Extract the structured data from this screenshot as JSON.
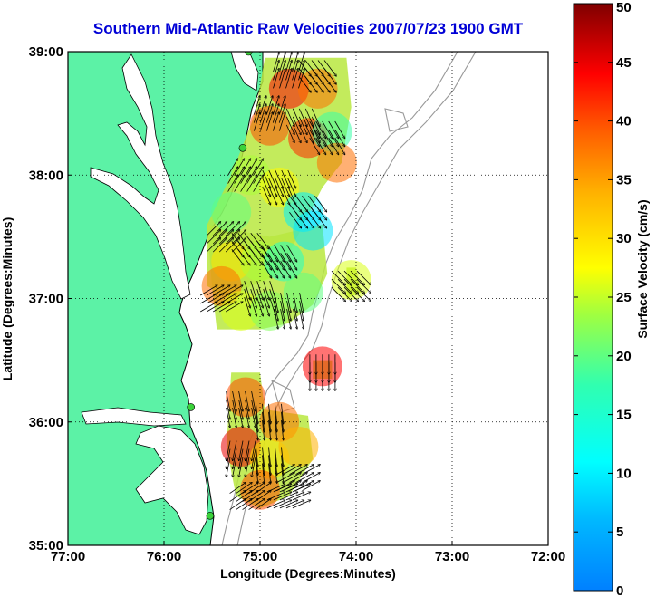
{
  "title": "Southern Mid-Atlantic Raw Velocities 2007/07/23 1900 GMT",
  "xlabel": "Longitude (Degrees:Minutes)",
  "ylabel": "Latitude (Degrees:Minutes)",
  "colorbar_label": "Surface Velocity (cm/s)",
  "x_ticks": [
    {
      "value": -77,
      "label": "77:00"
    },
    {
      "value": -76,
      "label": "76:00"
    },
    {
      "value": -75,
      "label": "75:00"
    },
    {
      "value": -74,
      "label": "74:00"
    },
    {
      "value": -73,
      "label": "73:00"
    },
    {
      "value": -72,
      "label": "72:00"
    }
  ],
  "y_ticks": [
    {
      "value": 35,
      "label": "35:00"
    },
    {
      "value": 36,
      "label": "36:00"
    },
    {
      "value": 37,
      "label": "37:00"
    },
    {
      "value": 38,
      "label": "38:00"
    },
    {
      "value": 39,
      "label": "39:00"
    }
  ],
  "colorbar_ticks": [
    {
      "value": 0,
      "label": "0"
    },
    {
      "value": 5,
      "label": "5"
    },
    {
      "value": 10,
      "label": "10"
    },
    {
      "value": 15,
      "label": "15"
    },
    {
      "value": 20,
      "label": "20"
    },
    {
      "value": 25,
      "label": "25"
    },
    {
      "value": 30,
      "label": "30"
    },
    {
      "value": 35,
      "label": "35"
    },
    {
      "value": 40,
      "label": "40"
    },
    {
      "value": 45,
      "label": "45"
    },
    {
      "value": 50,
      "label": "50"
    }
  ],
  "chart_data": {
    "type": "heatmap",
    "xlim": [
      -77,
      -72
    ],
    "ylim": [
      35,
      39
    ],
    "clim": [
      0,
      50
    ],
    "grid": true,
    "colormap": "jet",
    "colors": {
      "land": "#5cf2a6",
      "ocean": "#ffffff",
      "coastline": "#000000",
      "bathymetry": "#999999",
      "title": "#0000d6",
      "station": "#3ad23a"
    },
    "velocity_regions": [
      {
        "name": "northern-field",
        "polygon": [
          [
            -74.95,
            38.95
          ],
          [
            -74.1,
            38.95
          ],
          [
            -74.05,
            38.55
          ],
          [
            -74.15,
            38.1
          ],
          [
            -74.35,
            37.9
          ],
          [
            -74.55,
            37.6
          ],
          [
            -74.8,
            37.2
          ],
          [
            -75.1,
            37.1
          ],
          [
            -75.3,
            37.0
          ],
          [
            -75.55,
            37.1
          ],
          [
            -75.55,
            37.6
          ],
          [
            -75.3,
            38.0
          ],
          [
            -75.05,
            38.5
          ]
        ]
      },
      {
        "name": "central-field",
        "polygon": [
          [
            -75.55,
            37.6
          ],
          [
            -74.9,
            37.5
          ],
          [
            -74.35,
            37.6
          ],
          [
            -74.3,
            37.2
          ],
          [
            -74.45,
            36.95
          ],
          [
            -74.7,
            36.8
          ],
          [
            -75.0,
            36.75
          ],
          [
            -75.45,
            36.75
          ],
          [
            -75.5,
            37.1
          ]
        ]
      },
      {
        "name": "east-patch",
        "polygon": [
          [
            -74.1,
            37.25
          ],
          [
            -74.0,
            37.25
          ],
          [
            -73.95,
            37.05
          ],
          [
            -74.1,
            37.0
          ]
        ]
      },
      {
        "name": "small-patch",
        "polygon": [
          [
            -74.45,
            36.5
          ],
          [
            -74.25,
            36.5
          ],
          [
            -74.25,
            36.35
          ],
          [
            -74.45,
            36.35
          ]
        ]
      },
      {
        "name": "southern-field",
        "polygon": [
          [
            -75.3,
            36.4
          ],
          [
            -75.0,
            36.4
          ],
          [
            -74.95,
            36.1
          ],
          [
            -74.5,
            36.05
          ],
          [
            -74.45,
            35.7
          ],
          [
            -74.7,
            35.4
          ],
          [
            -75.0,
            35.3
          ],
          [
            -75.25,
            35.4
          ],
          [
            -75.35,
            35.8
          ]
        ]
      }
    ],
    "velocity_samples": [
      {
        "lon": -74.7,
        "lat": 38.7,
        "speed": 44
      },
      {
        "lon": -74.4,
        "lat": 38.7,
        "speed": 38
      },
      {
        "lon": -74.9,
        "lat": 38.4,
        "speed": 40
      },
      {
        "lon": -74.5,
        "lat": 38.3,
        "speed": 42
      },
      {
        "lon": -74.25,
        "lat": 38.35,
        "speed": 18
      },
      {
        "lon": -74.2,
        "lat": 38.1,
        "speed": 38
      },
      {
        "lon": -75.1,
        "lat": 38.0,
        "speed": 24
      },
      {
        "lon": -74.8,
        "lat": 37.9,
        "speed": 28
      },
      {
        "lon": -74.55,
        "lat": 37.7,
        "speed": 10
      },
      {
        "lon": -74.45,
        "lat": 37.55,
        "speed": 9
      },
      {
        "lon": -75.3,
        "lat": 37.7,
        "speed": 20
      },
      {
        "lon": -75.3,
        "lat": 37.3,
        "speed": 30
      },
      {
        "lon": -75.4,
        "lat": 37.1,
        "speed": 38
      },
      {
        "lon": -75.0,
        "lat": 37.3,
        "speed": 24
      },
      {
        "lon": -74.75,
        "lat": 37.3,
        "speed": 16
      },
      {
        "lon": -74.55,
        "lat": 37.05,
        "speed": 20
      },
      {
        "lon": -75.2,
        "lat": 36.9,
        "speed": 26
      },
      {
        "lon": -74.9,
        "lat": 36.9,
        "speed": 22
      },
      {
        "lon": -74.35,
        "lat": 36.45,
        "speed": 44
      },
      {
        "lon": -74.05,
        "lat": 37.15,
        "speed": 26
      },
      {
        "lon": -75.15,
        "lat": 36.2,
        "speed": 40
      },
      {
        "lon": -74.8,
        "lat": 36.0,
        "speed": 38
      },
      {
        "lon": -75.2,
        "lat": 35.8,
        "speed": 45
      },
      {
        "lon": -74.9,
        "lat": 35.7,
        "speed": 30
      },
      {
        "lon": -74.6,
        "lat": 35.8,
        "speed": 34
      },
      {
        "lon": -75.0,
        "lat": 35.45,
        "speed": 40
      }
    ],
    "vectors": [
      {
        "lon": -74.7,
        "lat": 38.85,
        "u": 0.3,
        "v": 1.0
      },
      {
        "lon": -74.4,
        "lat": 38.8,
        "u": 0.6,
        "v": -0.8
      },
      {
        "lon": -74.9,
        "lat": 38.5,
        "u": 0.3,
        "v": 0.95
      },
      {
        "lon": -74.55,
        "lat": 38.4,
        "u": 0.4,
        "v": -0.9
      },
      {
        "lon": -74.3,
        "lat": 38.3,
        "u": 0.5,
        "v": -0.85
      },
      {
        "lon": -75.15,
        "lat": 38.0,
        "u": 0.5,
        "v": 0.85
      },
      {
        "lon": -74.8,
        "lat": 37.9,
        "u": 0.4,
        "v": -0.9
      },
      {
        "lon": -74.5,
        "lat": 37.7,
        "u": 0.6,
        "v": -0.8
      },
      {
        "lon": -75.35,
        "lat": 37.5,
        "u": 0.7,
        "v": 0.7
      },
      {
        "lon": -75.1,
        "lat": 37.4,
        "u": 0.6,
        "v": -0.8
      },
      {
        "lon": -74.8,
        "lat": 37.3,
        "u": 0.5,
        "v": -0.85
      },
      {
        "lon": -75.4,
        "lat": 37.0,
        "u": 0.85,
        "v": 0.5
      },
      {
        "lon": -75.0,
        "lat": 37.0,
        "u": 0.3,
        "v": -0.95
      },
      {
        "lon": -74.7,
        "lat": 36.9,
        "u": 0.2,
        "v": -1.0
      },
      {
        "lon": -74.05,
        "lat": 37.1,
        "u": 0.7,
        "v": -0.7
      },
      {
        "lon": -74.35,
        "lat": 36.4,
        "u": 0.0,
        "v": -1.0
      },
      {
        "lon": -75.2,
        "lat": 36.1,
        "u": 0.2,
        "v": -1.0
      },
      {
        "lon": -74.9,
        "lat": 36.0,
        "u": 0.1,
        "v": -1.0
      },
      {
        "lon": -75.2,
        "lat": 35.7,
        "u": -0.2,
        "v": -1.0
      },
      {
        "lon": -74.9,
        "lat": 35.65,
        "u": 0.1,
        "v": -1.0
      },
      {
        "lon": -74.6,
        "lat": 35.55,
        "u": 0.9,
        "v": 0.5
      },
      {
        "lon": -75.1,
        "lat": 35.4,
        "u": 0.8,
        "v": 0.55
      },
      {
        "lon": -74.7,
        "lat": 35.4,
        "u": 0.9,
        "v": 0.4
      }
    ],
    "stations": [
      {
        "lon": -75.12,
        "lat": 39.0
      },
      {
        "lon": -75.18,
        "lat": 38.22
      },
      {
        "lon": -75.72,
        "lat": 36.12
      },
      {
        "lon": -75.52,
        "lat": 35.24
      }
    ]
  }
}
